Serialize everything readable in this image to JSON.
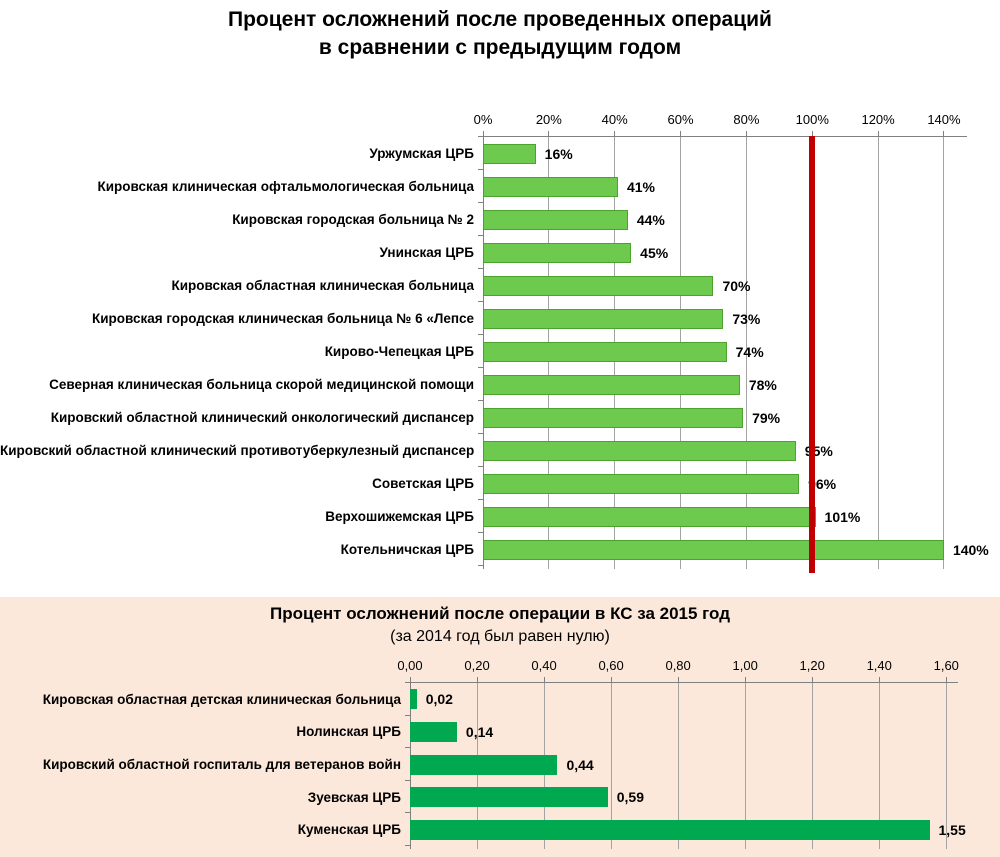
{
  "colors": {
    "chart1_bar_fill": "#6ec94f",
    "chart1_bar_border": "#4da22f",
    "chart2_bar_fill": "#00a94f",
    "reference_line": "#c00000",
    "gridline": "#a3a3a3",
    "axis": "#808080",
    "panel_background": "#fbe8da",
    "text": "#000000"
  },
  "chart_data": [
    {
      "type": "bar",
      "orientation": "horizontal",
      "title_line1": "Процент осложнений после проведенных операций",
      "title_line2": "в сравнении с предыдущим годом",
      "categories": [
        "Уржумская ЦРБ",
        "Кировская клиническая офтальмологическая больница",
        "Кировская городская больница № 2",
        "Унинская ЦРБ",
        "Кировская областная клиническая больница",
        "Кировская городская клиническая больница № 6 «Лепсе",
        "Кирово-Чепецкая ЦРБ",
        "Северная клиническая больница скорой медицинской помощи",
        "Кировский областной клинический онкологический диспансер",
        "Кировский областной клинический противотуберкулезный диспансер",
        "Советская ЦРБ",
        "Верхошижемская ЦРБ",
        "Котельничская ЦРБ"
      ],
      "values": [
        16,
        41,
        44,
        45,
        70,
        73,
        74,
        78,
        79,
        95,
        96,
        101,
        140
      ],
      "value_labels": [
        "16%",
        "41%",
        "44%",
        "45%",
        "70%",
        "73%",
        "74%",
        "78%",
        "79%",
        "95%",
        "96%",
        "101%",
        "140%"
      ],
      "x_ticks": {
        "values": [
          0,
          20,
          40,
          60,
          80,
          100,
          120,
          140
        ],
        "labels": [
          "0%",
          "20%",
          "40%",
          "60%",
          "80%",
          "100%",
          "120%",
          "140%"
        ]
      },
      "xlim": [
        0,
        147
      ],
      "grid": true,
      "legend": null,
      "reference_line": {
        "value": 100
      }
    },
    {
      "type": "bar",
      "orientation": "horizontal",
      "title": "Процент осложнений после операции в КС за 2015 год",
      "subtitle": "(за 2014 год был равен нулю)",
      "categories": [
        "Кировская областная детская клиническая больница",
        "Нолинская ЦРБ",
        "Кировский областной госпиталь для ветеранов войн",
        "Зуевская ЦРБ",
        "Куменская ЦРБ"
      ],
      "values": [
        0.02,
        0.14,
        0.44,
        0.59,
        1.55
      ],
      "value_labels": [
        "0,02",
        "0,14",
        "0,44",
        "0,59",
        "1,55"
      ],
      "x_ticks": {
        "values": [
          0,
          0.2,
          0.4,
          0.6,
          0.8,
          1.0,
          1.2,
          1.4,
          1.6
        ],
        "labels": [
          "0,00",
          "0,20",
          "0,40",
          "0,60",
          "0,80",
          "1,00",
          "1,20",
          "1,40",
          "1,60"
        ]
      },
      "xlim": [
        0,
        1.635
      ],
      "grid": true,
      "legend": null,
      "reference_line": null
    }
  ]
}
